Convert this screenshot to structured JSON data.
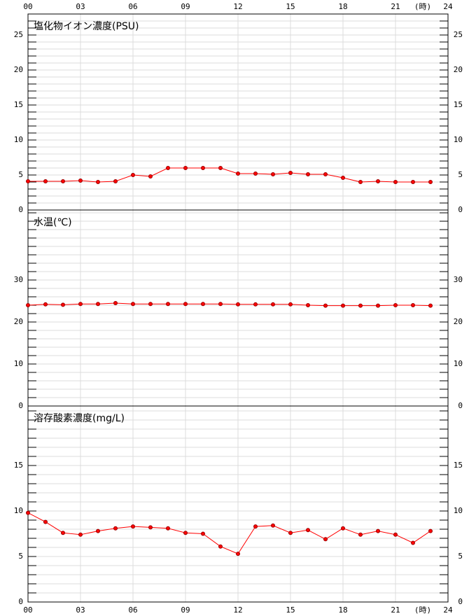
{
  "chart_data": [
    {
      "type": "line",
      "title": "塩化物イオン濃度(PSU)",
      "xlabel": "(時)",
      "x": [
        0,
        1,
        2,
        3,
        4,
        5,
        6,
        7,
        8,
        9,
        10,
        11,
        12,
        13,
        14,
        15,
        16,
        17,
        18,
        19,
        20,
        21,
        22,
        23
      ],
      "values": [
        4.1,
        4.1,
        4.1,
        4.2,
        4.0,
        4.1,
        5.0,
        4.8,
        6.0,
        6.0,
        6.0,
        6.0,
        5.2,
        5.2,
        5.1,
        5.3,
        5.1,
        5.1,
        4.6,
        4.0,
        4.1,
        4.0,
        4.0,
        4.0
      ],
      "color": "#ff0000",
      "xlim": [
        0,
        24
      ],
      "xticks": [
        {
          "value": 0,
          "label": "00"
        },
        {
          "value": 3,
          "label": "03"
        },
        {
          "value": 6,
          "label": "06"
        },
        {
          "value": 9,
          "label": "09"
        },
        12,
        15,
        18,
        21,
        24
      ],
      "ylim": [
        0,
        28
      ],
      "yticks": [
        0,
        5,
        10,
        15,
        20,
        25
      ],
      "minor_yticks": [
        0,
        1,
        2,
        3,
        4,
        5,
        6,
        7,
        8,
        9,
        10,
        11,
        12,
        13,
        14,
        15,
        16,
        17,
        18,
        19,
        20,
        21,
        22,
        23,
        24,
        25,
        26,
        27,
        28
      ],
      "grid": true
    },
    {
      "type": "line",
      "title": "水温(℃)",
      "x": [
        0,
        1,
        2,
        3,
        4,
        5,
        6,
        7,
        8,
        9,
        10,
        11,
        12,
        13,
        14,
        15,
        16,
        17,
        18,
        19,
        20,
        21,
        22,
        23
      ],
      "values": [
        24.0,
        24.2,
        24.1,
        24.3,
        24.3,
        24.5,
        24.3,
        24.3,
        24.3,
        24.3,
        24.3,
        24.3,
        24.2,
        24.2,
        24.2,
        24.2,
        24.0,
        23.9,
        23.9,
        23.9,
        23.9,
        24.0,
        24.0,
        23.9
      ],
      "color": "#ff0000",
      "xlim": [
        0,
        24
      ],
      "xticks": [
        {
          "value": 0,
          "label": "00"
        },
        {
          "value": 3,
          "label": "03"
        },
        {
          "value": 6,
          "label": "06"
        },
        {
          "value": 9,
          "label": "09"
        },
        12,
        15,
        18,
        21,
        24
      ],
      "ylim": [
        0,
        46.67
      ],
      "yticks": [
        0,
        10,
        20,
        30
      ],
      "minor_yticks": [
        0,
        2,
        4,
        6,
        8,
        10,
        12,
        14,
        16,
        18,
        20,
        22,
        24,
        26,
        28,
        30,
        32,
        34,
        36,
        38,
        40,
        42,
        44,
        46
      ],
      "grid": true
    },
    {
      "type": "line",
      "title": "溶存酸素濃度(mg/L)",
      "xlabel": "(時)",
      "x": [
        0,
        1,
        2,
        3,
        4,
        5,
        6,
        7,
        8,
        9,
        10,
        11,
        12,
        13,
        14,
        15,
        16,
        17,
        18,
        19,
        20,
        21,
        22,
        23
      ],
      "values": [
        9.8,
        8.8,
        7.6,
        7.4,
        7.8,
        8.1,
        8.3,
        8.2,
        8.1,
        7.6,
        7.5,
        6.1,
        5.3,
        8.3,
        8.4,
        7.6,
        7.9,
        6.9,
        8.1,
        7.4,
        7.8,
        7.4,
        6.5,
        7.8
      ],
      "color": "#ff0000",
      "xlim": [
        0,
        24
      ],
      "xticks": [
        {
          "value": 0,
          "label": "00"
        },
        {
          "value": 3,
          "label": "03"
        },
        {
          "value": 6,
          "label": "06"
        },
        {
          "value": 9,
          "label": "09"
        },
        12,
        15,
        18,
        21,
        24
      ],
      "ylim": [
        0,
        21.54
      ],
      "yticks": [
        0,
        5,
        10,
        15
      ],
      "minor_yticks": [
        0,
        1,
        2,
        3,
        4,
        5,
        6,
        7,
        8,
        9,
        10,
        11,
        12,
        13,
        14,
        15,
        16,
        17,
        18,
        19,
        20,
        21
      ],
      "grid": true
    }
  ]
}
